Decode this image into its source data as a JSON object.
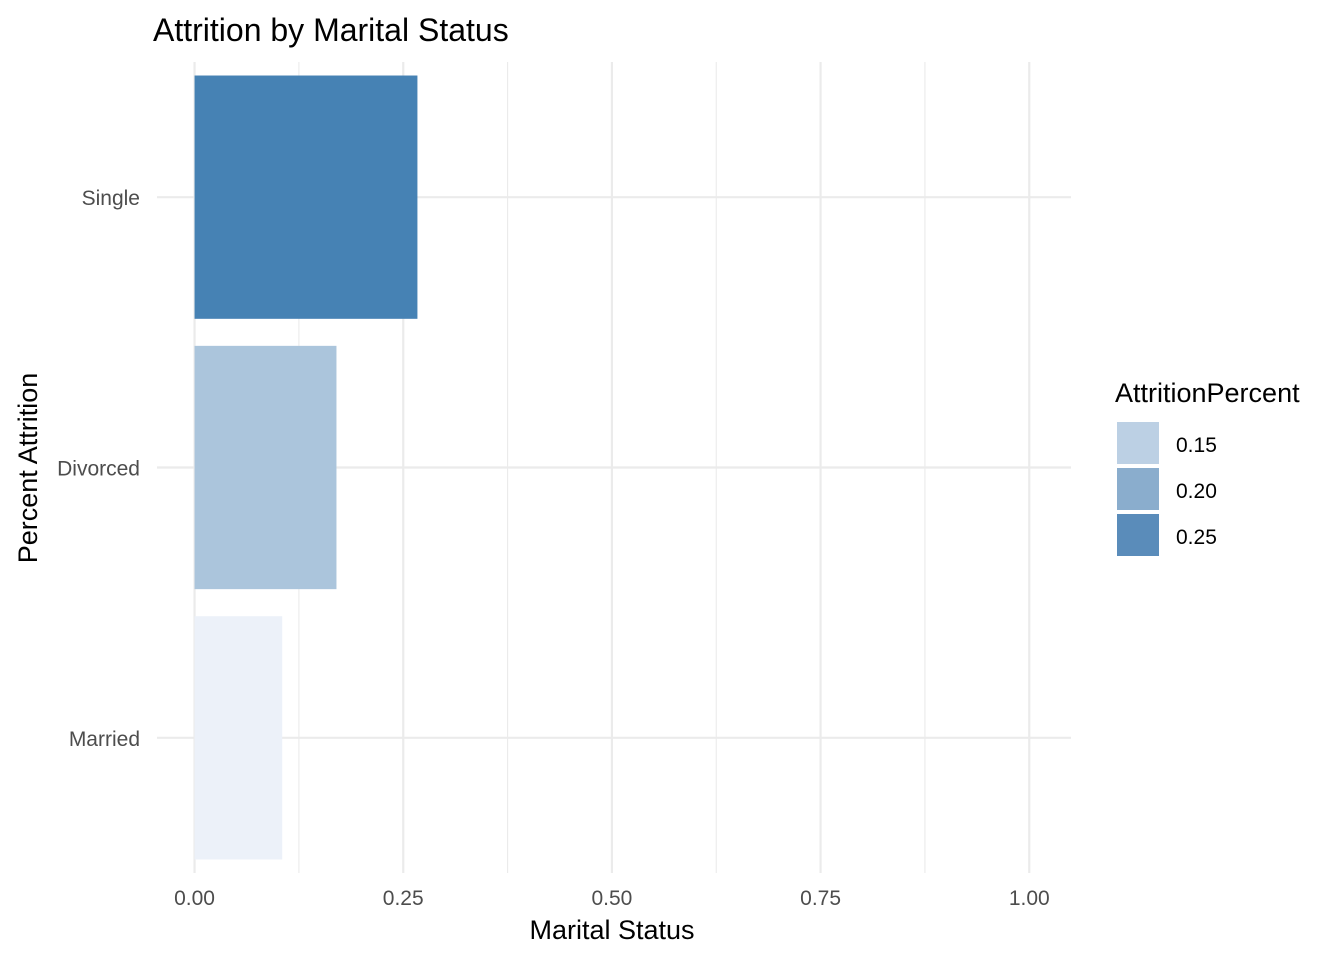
{
  "chart_data": {
    "type": "bar",
    "orientation": "horizontal",
    "title": "Attrition by Marital Status",
    "xlabel": "Marital Status",
    "ylabel": "Percent Attrition",
    "categories": [
      "Married",
      "Divorced",
      "Single"
    ],
    "values": [
      0.105,
      0.17,
      0.267
    ],
    "xlim": [
      -0.045,
      1.05
    ],
    "x_ticks": [
      0.0,
      0.25,
      0.5,
      0.75,
      1.0
    ],
    "x_tick_labels": [
      "0.00",
      "0.25",
      "0.50",
      "0.75",
      "1.00"
    ],
    "grid": true,
    "legend": {
      "title": "AttritionPercent",
      "placement": "right",
      "entries": [
        {
          "label": "0.15",
          "color": "#bcd0e4"
        },
        {
          "label": "0.20",
          "color": "#8aadcd"
        },
        {
          "label": "0.25",
          "color": "#5a8cba"
        }
      ]
    },
    "bar_colors": [
      "#ecf1f9",
      "#abc5dc",
      "#4682b4"
    ]
  }
}
